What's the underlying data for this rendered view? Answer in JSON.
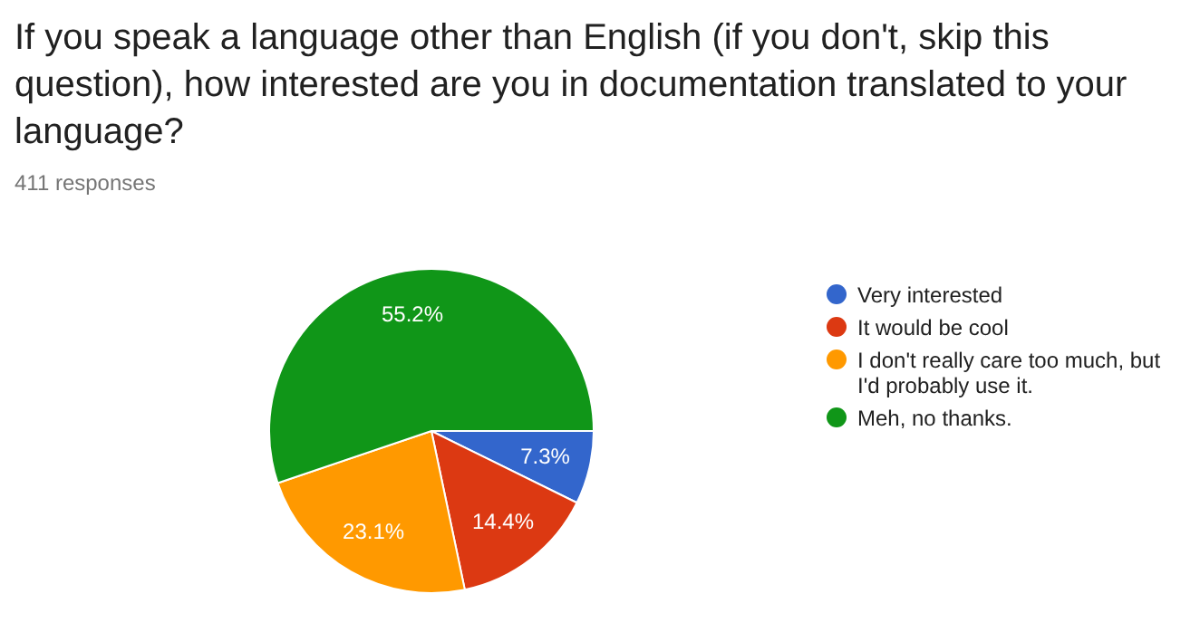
{
  "chart_data": {
    "type": "pie",
    "title": "If you speak a language other than English (if you don't, skip this question), how interested are you in documentation translated to your language?",
    "subtitle": "411 responses",
    "categories": [
      "Very interested",
      "It would be cool",
      "I don't really care too much, but I'd probably use it.",
      "Meh, no thanks."
    ],
    "values": [
      7.3,
      14.4,
      23.1,
      55.2
    ],
    "colors": [
      "#3366cc",
      "#dc3912",
      "#ff9900",
      "#109618"
    ],
    "value_labels": [
      "7.3%",
      "14.4%",
      "23.1%",
      "55.2%"
    ],
    "legend": "right"
  }
}
